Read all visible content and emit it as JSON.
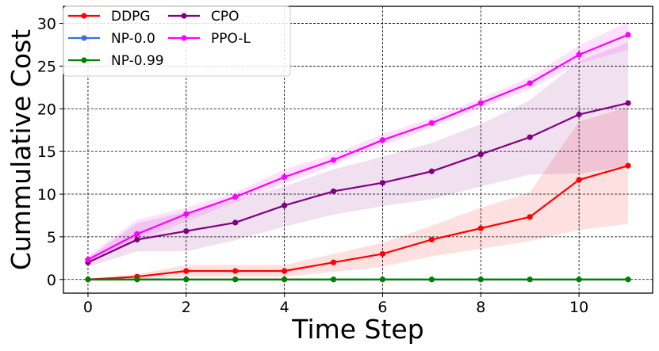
{
  "chart_data": {
    "type": "line",
    "xlabel": "Time Step",
    "ylabel": "Cummulative Cost",
    "xlim": [
      -0.5,
      11.5
    ],
    "ylim": [
      -1.6,
      32
    ],
    "xticks": [
      0,
      2,
      4,
      6,
      8,
      10
    ],
    "yticks": [
      0,
      5,
      10,
      15,
      20,
      25,
      30
    ],
    "grid": true,
    "legend_position": "top-left",
    "x": [
      0,
      1,
      2,
      3,
      4,
      5,
      6,
      7,
      8,
      9,
      10,
      11
    ],
    "series": [
      {
        "name": "DDPG",
        "color": "#ff0000",
        "values": [
          0,
          0.33,
          1.0,
          1.0,
          1.0,
          2.0,
          3.0,
          4.67,
          6.0,
          7.33,
          11.67,
          13.33
        ],
        "lower": [
          0,
          0,
          0.3,
          0.3,
          0.3,
          0.9,
          1.5,
          2.7,
          3.6,
          4.5,
          5.8,
          6.5
        ],
        "upper": [
          0,
          0.6,
          1.7,
          1.7,
          1.7,
          3.0,
          4.3,
          6.3,
          8.4,
          10.2,
          18.5,
          20.2
        ]
      },
      {
        "name": "NP-0.0",
        "color": "#3a6fd8",
        "values": [
          0,
          0,
          0,
          0,
          0,
          0,
          0,
          0,
          0,
          0,
          0,
          0
        ]
      },
      {
        "name": "NP-0.99",
        "color": "#008000",
        "values": [
          0,
          0,
          0,
          0,
          0,
          0,
          0,
          0,
          0,
          0,
          0,
          0
        ]
      },
      {
        "name": "CPO",
        "color": "#800080",
        "values": [
          2.0,
          4.67,
          5.67,
          6.67,
          8.67,
          10.33,
          11.33,
          12.67,
          14.67,
          16.67,
          19.33,
          20.67
        ],
        "lower": [
          1.5,
          3.3,
          3.3,
          4.6,
          6.2,
          7.6,
          8.6,
          9.4,
          10.9,
          12.3,
          12.4,
          13.3
        ],
        "upper": [
          2.5,
          6.6,
          7.9,
          9.3,
          10.9,
          12.9,
          14.4,
          16.0,
          18.2,
          21.0,
          25.6,
          27.8
        ]
      },
      {
        "name": "PPO-L",
        "color": "#ff00ff",
        "values": [
          2.33,
          5.33,
          7.67,
          9.67,
          12.0,
          14.0,
          16.33,
          18.33,
          20.67,
          23.0,
          26.33,
          28.67
        ],
        "lower": [
          1.9,
          4.5,
          6.8,
          9.1,
          11.2,
          13.4,
          15.7,
          17.8,
          20.1,
          22.3,
          25.3,
          26.9
        ],
        "upper": [
          2.8,
          7.0,
          8.4,
          10.2,
          12.9,
          14.7,
          17.0,
          18.9,
          21.2,
          23.7,
          27.4,
          30.2
        ]
      }
    ]
  }
}
